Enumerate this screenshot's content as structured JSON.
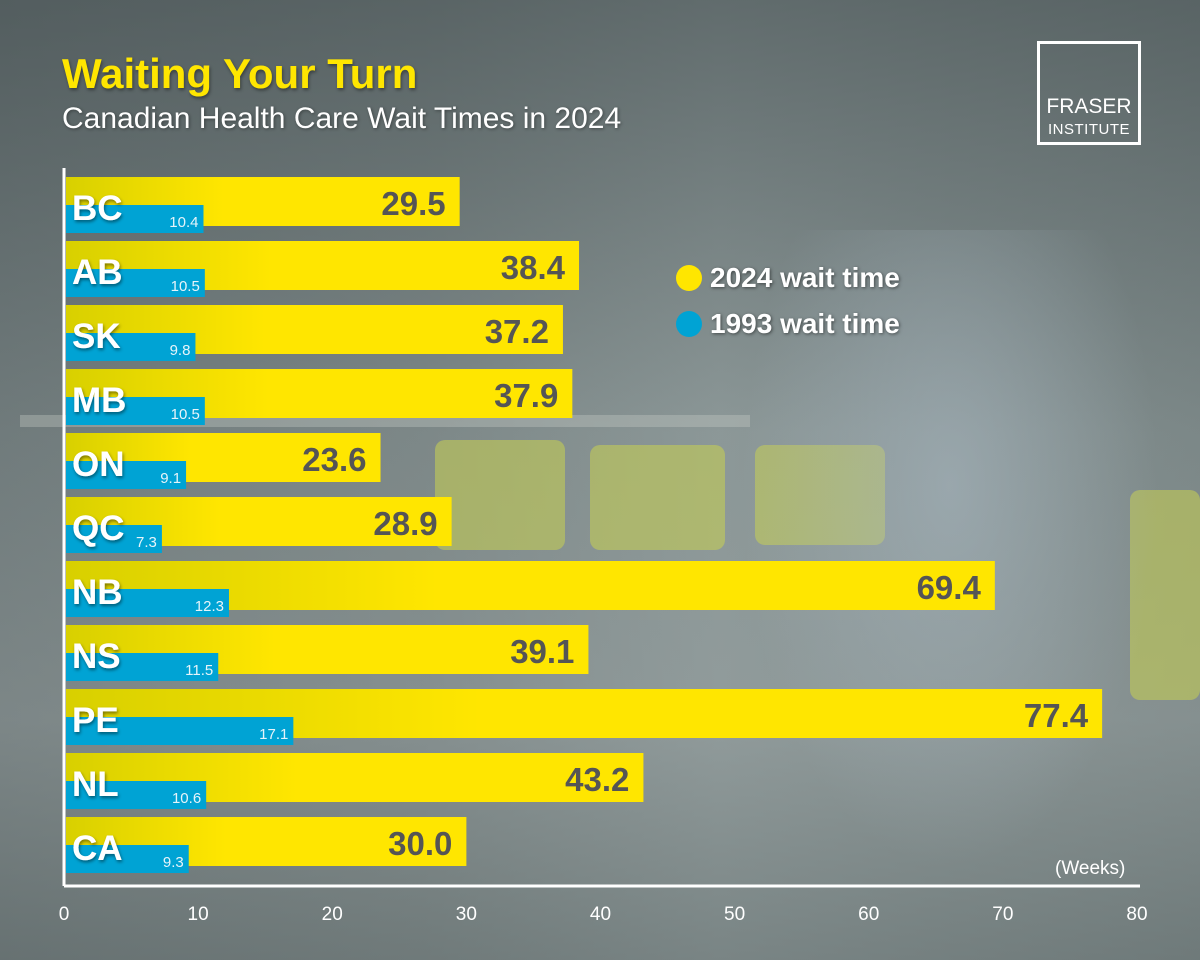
{
  "title": "Waiting Your Turn",
  "subtitle": "Canadian Health Care Wait Times in 2024",
  "logo": {
    "line1": "FRASER",
    "line2": "INSTITUTE"
  },
  "chart_data": {
    "type": "bar",
    "orientation": "horizontal",
    "categories": [
      "BC",
      "AB",
      "SK",
      "MB",
      "ON",
      "QC",
      "NB",
      "NS",
      "PE",
      "NL",
      "CA"
    ],
    "series": [
      {
        "name": "2024 wait time",
        "color": "#ffe600",
        "values": [
          29.5,
          38.4,
          37.2,
          37.9,
          23.6,
          28.9,
          69.4,
          39.1,
          77.4,
          43.2,
          30.0
        ]
      },
      {
        "name": "1993 wait time",
        "color": "#00a3d4",
        "values": [
          10.4,
          10.5,
          9.8,
          10.5,
          9.1,
          7.3,
          12.3,
          11.5,
          17.1,
          10.6,
          9.3
        ]
      }
    ],
    "xlabel": "(Weeks)",
    "xlim": [
      0,
      80
    ],
    "xticks": [
      0,
      10,
      20,
      30,
      40,
      50,
      60,
      70,
      80
    ],
    "grid": false,
    "legend": "top-right"
  }
}
